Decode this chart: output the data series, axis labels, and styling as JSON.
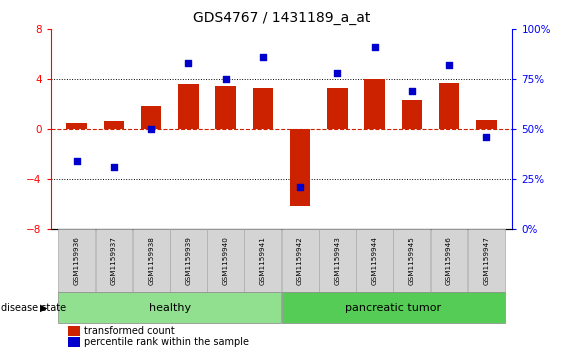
{
  "title": "GDS4767 / 1431189_a_at",
  "samples": [
    "GSM1159936",
    "GSM1159937",
    "GSM1159938",
    "GSM1159939",
    "GSM1159940",
    "GSM1159941",
    "GSM1159942",
    "GSM1159943",
    "GSM1159944",
    "GSM1159945",
    "GSM1159946",
    "GSM1159947"
  ],
  "bar_values": [
    0.5,
    0.6,
    1.8,
    3.6,
    3.4,
    3.3,
    -6.2,
    3.3,
    4.0,
    2.3,
    3.7,
    0.7
  ],
  "dot_values_pct": [
    34,
    31,
    50,
    83,
    75,
    86,
    21,
    78,
    91,
    69,
    82,
    46
  ],
  "bar_color": "#cc2200",
  "dot_color": "#0000cc",
  "ylim_left": [
    -8,
    8
  ],
  "ylim_right": [
    0,
    100
  ],
  "yticks_left": [
    -8,
    -4,
    0,
    4,
    8
  ],
  "yticks_right": [
    0,
    25,
    50,
    75,
    100
  ],
  "dotted_lines": [
    -4,
    4
  ],
  "group1_label": "healthy",
  "group2_label": "pancreatic tumor",
  "group1_indices": [
    0,
    1,
    2,
    3,
    4,
    5
  ],
  "group2_indices": [
    6,
    7,
    8,
    9,
    10,
    11
  ],
  "group1_color_light": "#d6f5d6",
  "group1_color": "#90e090",
  "group2_color": "#55cc55",
  "disease_state_label": "disease state",
  "legend_bar_label": "transformed count",
  "legend_dot_label": "percentile rank within the sample",
  "bar_width": 0.55,
  "dot_size": 22,
  "cell_bg": "#d4d4d4"
}
